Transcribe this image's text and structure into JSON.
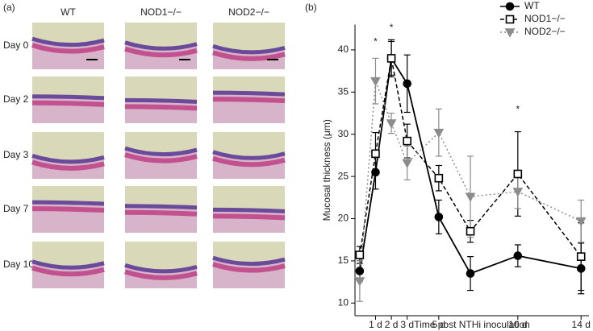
{
  "panel_a": {
    "label": "(a)",
    "columns": [
      "WT",
      "NOD1−/−",
      "NOD2−/−"
    ],
    "rows": [
      "Day 0",
      "Day 2",
      "Day 3",
      "Day 7",
      "Day 10"
    ]
  },
  "chart_data": {
    "type": "line",
    "panel_label": "(b)",
    "x_label": "Time post NTHi inoculation",
    "y_label": "Mucosal thickness (μm)",
    "x": [
      0,
      1,
      2,
      3,
      5,
      7,
      10,
      14
    ],
    "series": [
      {
        "name": "WT",
        "color": "#000000",
        "line_style": "solid",
        "marker": "circle",
        "marker_filled": true,
        "values": [
          13.8,
          25.5,
          39,
          36,
          20.2,
          13.5,
          15.6,
          14.1
        ],
        "errors": [
          1.2,
          2,
          2.2,
          3.4,
          2,
          2,
          1.3,
          3
        ]
      },
      {
        "name": "NOD1−/−",
        "color": "#000000",
        "line_style": "dashed",
        "marker": "square",
        "marker_filled": false,
        "values": [
          15.7,
          27.7,
          39,
          29.2,
          24.8,
          18.5,
          25.3,
          15.5
        ],
        "errors": [
          1,
          2.5,
          2,
          2,
          1.5,
          1.3,
          5,
          4
        ]
      },
      {
        "name": "NOD2−/−",
        "color": "#8c8c8c",
        "line_style": "dotted",
        "marker": "triangle-down",
        "marker_filled": true,
        "values": [
          12.6,
          36.3,
          31.3,
          26.6,
          30.2,
          22.6,
          23.2,
          19.7
        ],
        "errors": [
          2.4,
          2.7,
          1.2,
          2,
          2.8,
          4.8,
          2,
          2.5
        ]
      }
    ],
    "xlim": [
      -0.3,
      14.5
    ],
    "ylim": [
      8.5,
      43
    ],
    "xticks": [
      {
        "value": 1,
        "label": "1 d"
      },
      {
        "value": 2,
        "label": "2 d"
      },
      {
        "value": 3,
        "label": "3 d"
      },
      {
        "value": 5,
        "label": "5 d"
      },
      {
        "value": 10,
        "label": "10 d"
      },
      {
        "value": 14,
        "label": "14 d"
      }
    ],
    "yticks": [
      10,
      15,
      20,
      25,
      30,
      35,
      40
    ],
    "annotations": [
      {
        "text": "*",
        "x": 1,
        "y": 40.9
      },
      {
        "text": "*",
        "x": 2,
        "y": 42.6
      },
      {
        "text": "*",
        "x": 10,
        "y": 32.9
      }
    ],
    "legend": "upper right"
  }
}
